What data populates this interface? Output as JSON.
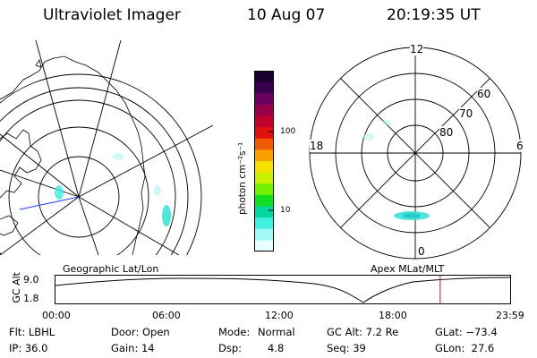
{
  "header": {
    "instrument": "Ultraviolet Imager",
    "date": "10 Aug 07",
    "time": "20:19:35 UT"
  },
  "colorbar": {
    "unit_label": "photon cm⁻²s⁻¹",
    "ticks": [
      "100",
      "10"
    ],
    "colors": [
      "#1a0030",
      "#3a0050",
      "#6a0060",
      "#98004a",
      "#c2002c",
      "#e01010",
      "#f05a00",
      "#f8a000",
      "#f8e000",
      "#c8f000",
      "#70f000",
      "#10e020",
      "#00d8a0",
      "#40f0e0",
      "#a0f8f8",
      "#e8ffff"
    ]
  },
  "left_panel": {
    "caption": "Geographic Lat/Lon"
  },
  "right_panel": {
    "caption": "Apex MLat/MLT",
    "mlt_labels": {
      "top": "12",
      "left": "18",
      "right": "6",
      "bottom": "0"
    },
    "mlat_labels": [
      "60",
      "70",
      "80"
    ]
  },
  "altitude_plot": {
    "ylabel": "GC Alt",
    "yticks": [
      "9.0",
      "1.8"
    ],
    "xticks": [
      "00:00",
      "06:00",
      "12:00",
      "18:00",
      "23:59"
    ],
    "line_color": "#000000",
    "marker_color": "#ff0000",
    "current_time_fraction": 0.846
  },
  "status": {
    "filter": "Flt: LBHL",
    "ip": "IP: 36.0",
    "door": "Door: Open",
    "gain": "Gain: 14",
    "mode_label": "Mode:",
    "mode_value": "Normal",
    "dsp_label": "Dsp:",
    "dsp_value": "4.8",
    "gc_alt": "GC Alt: 7.2 Re",
    "seq": "Seq: 39",
    "glat": "GLat: −73.4",
    "glon": "GLon:  27.6"
  }
}
